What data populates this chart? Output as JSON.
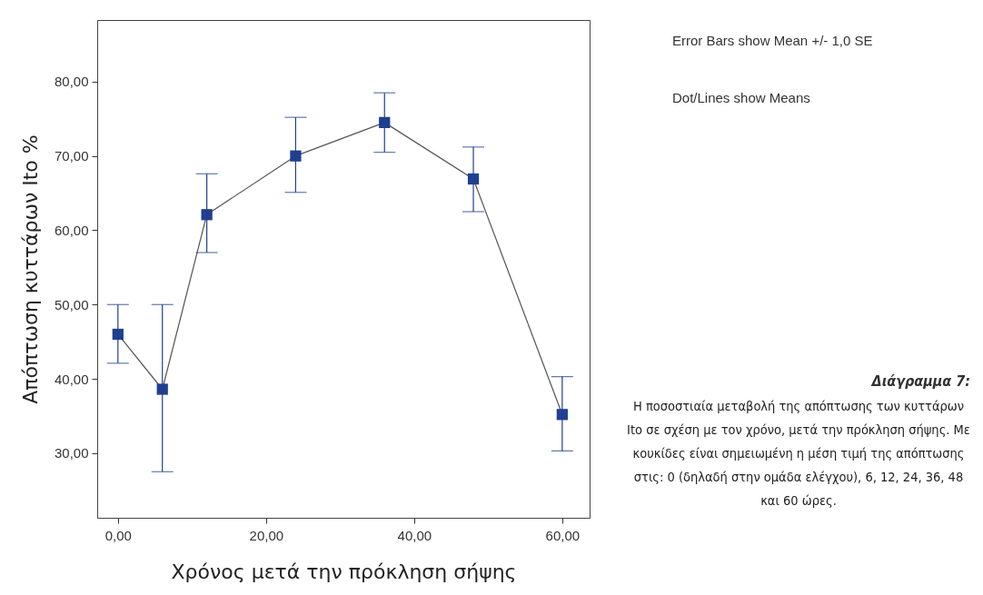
{
  "chart_data": {
    "type": "line",
    "xlabel": "Χρόνος μετά την πρόκληση σήψης",
    "ylabel": "Απόπτωση κυττάρων Ito %",
    "x": [
      0,
      6,
      12,
      24,
      36,
      48,
      60
    ],
    "series": [
      {
        "color": "#1f3f8f",
        "values": [
          46.0,
          38.6,
          62.1,
          70.0,
          74.5,
          66.9,
          35.2
        ],
        "errors": [
          [
            42.1,
            50.0
          ],
          [
            27.5,
            50.0
          ],
          [
            57.0,
            67.6
          ],
          [
            65.1,
            75.2
          ],
          [
            70.5,
            78.5
          ],
          [
            62.5,
            71.2
          ],
          [
            30.3,
            40.3
          ]
        ]
      }
    ],
    "xlim": [
      -2.8,
      63.7
    ],
    "ylim": [
      21.3,
      88.3
    ],
    "xticks": [
      {
        "value": 0,
        "label": "0,00"
      },
      {
        "value": 20,
        "label": "20,00"
      },
      {
        "value": 40,
        "label": "40,00"
      },
      {
        "value": 60,
        "label": "60,00"
      }
    ],
    "yticks": [
      {
        "value": 30,
        "label": "30,00"
      },
      {
        "value": 40,
        "label": "40,00"
      },
      {
        "value": 50,
        "label": "50,00"
      },
      {
        "value": 60,
        "label": "60,00"
      },
      {
        "value": 70,
        "label": "70,00"
      },
      {
        "value": 80,
        "label": "80,00"
      }
    ],
    "grid": false,
    "marker": "square",
    "line_style": "solid",
    "annotations": [
      "Error Bars show Mean +/- 1,0 SE",
      "Dot/Lines show Means",
      "Διάγραμμα 7:",
      "Η ποσοστιαία μεταβολή της απόπτωσης των κυττάρων Ito σε σχέση με τον χρόνο, μετά την πρόκληση σήψης. Με κουκίδες είναι σημειωμένη η μέση τιμή της απόπτωσης στις: 0 (δηλαδή στην ομάδα ελέγχου), 6, 12, 24, 36, 48 και 60 ώρες."
    ]
  }
}
